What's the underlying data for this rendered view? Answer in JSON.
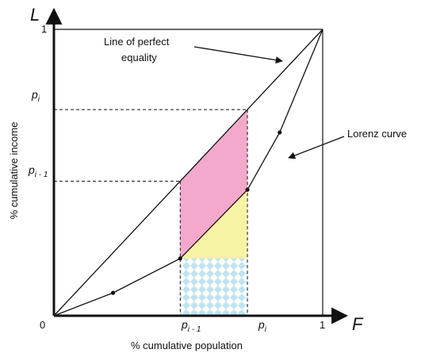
{
  "axes": {
    "x_axis_symbol": "F",
    "y_axis_symbol": "L",
    "x_axis_label": "% cumulative population",
    "y_axis_label": "% cumulative income",
    "origin_label": "0",
    "x_max_label": "1",
    "y_max_label": "1"
  },
  "ticks": {
    "p_i_label": "p",
    "p_i_subscript": "i",
    "p_i_minus_1_label": "p",
    "p_i_minus_1_subscript": "i - 1"
  },
  "annotations": {
    "equality_line_1": "Line of perfect",
    "equality_line_2": "equality",
    "lorenz_curve": "Lorenz curve"
  },
  "colors": {
    "upper_region": "#f4a9cc",
    "middle_region": "#f7f3a4",
    "lower_pattern": "#bfe3f0",
    "lines": "#111111"
  },
  "chart_data": {
    "type": "line",
    "xlabel": "% cumulative population",
    "ylabel": "% cumulative income",
    "xlim": [
      0,
      1
    ],
    "ylim": [
      0,
      1
    ],
    "series": [
      {
        "name": "Line of perfect equality",
        "x": [
          0,
          1
        ],
        "y": [
          0,
          1
        ]
      },
      {
        "name": "Lorenz curve",
        "x": [
          0,
          0.22,
          0.47,
          0.72,
          0.84,
          1
        ],
        "y": [
          0,
          0.08,
          0.2,
          0.44,
          0.64,
          1
        ]
      }
    ],
    "p_i_minus_1": 0.47,
    "p_i": 0.72
  }
}
